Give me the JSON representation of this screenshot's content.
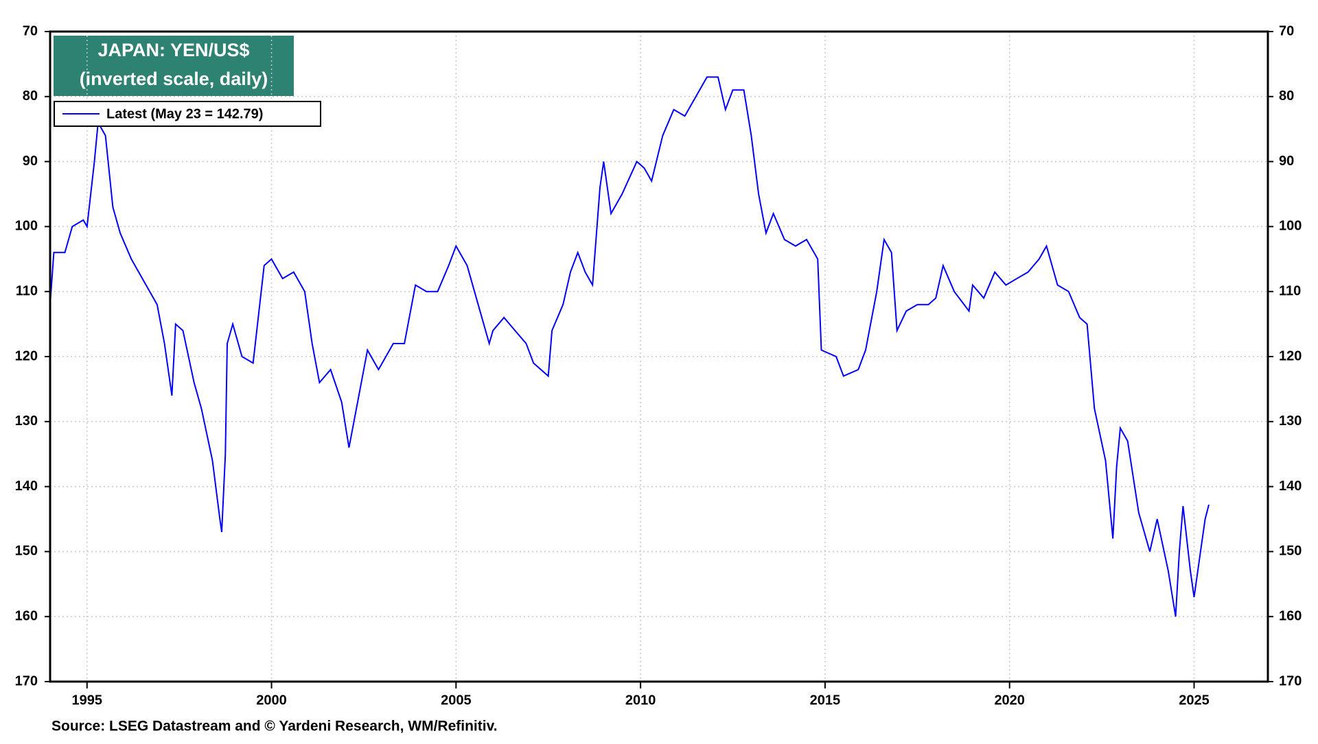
{
  "chart_data": {
    "type": "line",
    "title": "JAPAN: YEN/US$",
    "subtitle": "(inverted scale, daily)",
    "source": "Source: LSEG Datastream and © Yardeni Research, WM/Refinitiv.",
    "xlim": [
      1994,
      2027
    ],
    "xticks": [
      1995,
      2000,
      2005,
      2010,
      2015,
      2020,
      2025
    ],
    "ylim": [
      70,
      170
    ],
    "yticks": [
      70,
      80,
      90,
      100,
      110,
      120,
      130,
      140,
      150,
      160,
      170
    ],
    "y_inverted": true,
    "grid": true,
    "legend": "upper left",
    "x": [
      1994.0,
      1994.1,
      1994.4,
      1994.6,
      1994.9,
      1995.0,
      1995.2,
      1995.3,
      1995.5,
      1995.7,
      1995.9,
      1996.2,
      1996.5,
      1996.9,
      1997.1,
      1997.3,
      1997.4,
      1997.6,
      1997.9,
      1998.1,
      1998.4,
      1998.6,
      1998.65,
      1998.75,
      1998.8,
      1998.95,
      1999.2,
      1999.5,
      1999.8,
      2000.0,
      2000.3,
      2000.6,
      2000.9,
      2001.1,
      2001.3,
      2001.6,
      2001.9,
      2002.1,
      2002.3,
      2002.6,
      2002.9,
      2003.3,
      2003.6,
      2003.9,
      2004.2,
      2004.5,
      2004.8,
      2005.0,
      2005.3,
      2005.6,
      2005.9,
      2006.0,
      2006.3,
      2006.6,
      2006.9,
      2007.1,
      2007.5,
      2007.6,
      2007.9,
      2008.1,
      2008.3,
      2008.5,
      2008.7,
      2008.9,
      2009.0,
      2009.2,
      2009.5,
      2009.9,
      2010.1,
      2010.3,
      2010.6,
      2010.9,
      2011.2,
      2011.5,
      2011.8,
      2012.1,
      2012.3,
      2012.5,
      2012.8,
      2013.0,
      2013.2,
      2013.4,
      2013.6,
      2013.9,
      2014.2,
      2014.5,
      2014.8,
      2014.9,
      2015.3,
      2015.5,
      2015.9,
      2016.1,
      2016.4,
      2016.6,
      2016.8,
      2016.95,
      2017.2,
      2017.5,
      2017.8,
      2018.0,
      2018.2,
      2018.5,
      2018.9,
      2019.0,
      2019.3,
      2019.6,
      2019.9,
      2020.2,
      2020.5,
      2020.8,
      2021.0,
      2021.3,
      2021.6,
      2021.9,
      2022.1,
      2022.3,
      2022.6,
      2022.8,
      2022.9,
      2023.0,
      2023.2,
      2023.5,
      2023.8,
      2024.0,
      2024.3,
      2024.5,
      2024.6,
      2024.7,
      2024.9,
      2025.0,
      2025.2,
      2025.3,
      2025.4
    ],
    "series": [
      {
        "name": "Latest (May 23 = 142.79)",
        "color": "#0000ff",
        "values": [
          112,
          104,
          104,
          100,
          99,
          100,
          90,
          84,
          86,
          97,
          101,
          105,
          108,
          112,
          118,
          126,
          115,
          116,
          124,
          128,
          136,
          145,
          147,
          135,
          118,
          115,
          120,
          121,
          106,
          105,
          108,
          107,
          110,
          118,
          124,
          122,
          127,
          134,
          128,
          119,
          122,
          118,
          118,
          109,
          110,
          110,
          106,
          103,
          106,
          112,
          118,
          116,
          114,
          116,
          118,
          121,
          123,
          116,
          112,
          107,
          104,
          107,
          109,
          94,
          90,
          98,
          95,
          90,
          91,
          93,
          86,
          82,
          83,
          80,
          77,
          77,
          82,
          79,
          79,
          86,
          95,
          101,
          98,
          102,
          103,
          102,
          105,
          119,
          120,
          123,
          122,
          119,
          110,
          102,
          104,
          116,
          113,
          112,
          112,
          111,
          106,
          110,
          113,
          109,
          111,
          107,
          109,
          108,
          107,
          105,
          103,
          109,
          110,
          114,
          115,
          128,
          136,
          148,
          137,
          131,
          133,
          144,
          150,
          145,
          153,
          160,
          150,
          143,
          153,
          157,
          149,
          145,
          142.79
        ]
      }
    ]
  }
}
